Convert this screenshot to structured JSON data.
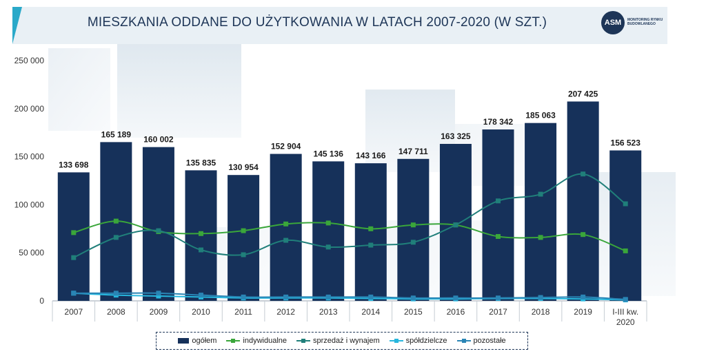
{
  "title": "MIESZKANIA ODDANE DO UŻYTKOWANIA W LATACH 2007-2020 (W SZT.)",
  "logo": {
    "initials": "ASM",
    "text": "MONITORING RYNKU BUDOWLANEGO"
  },
  "colors": {
    "bar": "#16315a",
    "indywidualne": "#3aa63a",
    "sprzedaz": "#207f7a",
    "spoldzielcze": "#27b7de",
    "pozostale": "#2a85b5",
    "header_accent": "#2aa9c9"
  },
  "chart_data": {
    "type": "bar",
    "title": "MIESZKANIA ODDANE DO UŻYTKOWANIA W LATACH 2007-2020 (W SZT.)",
    "categories": [
      "2007",
      "2008",
      "2009",
      "2010",
      "2011",
      "2012",
      "2013",
      "2014",
      "2015",
      "2016",
      "2017",
      "2018",
      "2019",
      "I-III kw. 2020"
    ],
    "ylim": [
      0,
      250000
    ],
    "yticks": [
      0,
      50000,
      100000,
      150000,
      200000,
      250000
    ],
    "ytick_labels": [
      "0",
      "50 000",
      "100 000",
      "150 000",
      "200 000",
      "250 000"
    ],
    "grid": false,
    "legend_position": "bottom",
    "series": [
      {
        "name": "ogółem",
        "type": "bar",
        "values": [
          133698,
          165189,
          160002,
          135835,
          130954,
          152904,
          145136,
          143166,
          147711,
          163325,
          178342,
          185063,
          207425,
          156523
        ],
        "labels": [
          "133 698",
          "165 189",
          "160 002",
          "135 835",
          "130 954",
          "152 904",
          "145 136",
          "143 166",
          "147 711",
          "163 325",
          "178 342",
          "185 063",
          "207 425",
          "156 523"
        ]
      },
      {
        "name": "indywidualne",
        "type": "line",
        "values": [
          71000,
          83000,
          72000,
          70000,
          73000,
          80000,
          81000,
          75000,
          79000,
          79000,
          67000,
          66000,
          69000,
          52000
        ]
      },
      {
        "name": "sprzedaż i wynajem",
        "type": "line",
        "values": [
          45000,
          66000,
          73000,
          53000,
          48000,
          63000,
          56000,
          58000,
          61000,
          79000,
          104000,
          111000,
          132000,
          101000
        ]
      },
      {
        "name": "spółdzielcze",
        "type": "line",
        "values": [
          8000,
          6000,
          5000,
          4000,
          3000,
          3000,
          3000,
          2500,
          2000,
          2000,
          2500,
          2500,
          2000,
          1000
        ]
      },
      {
        "name": "pozostałe",
        "type": "line",
        "values": [
          8000,
          8000,
          8000,
          6000,
          4000,
          4000,
          4000,
          4000,
          3000,
          3000,
          3000,
          3500,
          4000,
          1500
        ]
      }
    ]
  }
}
